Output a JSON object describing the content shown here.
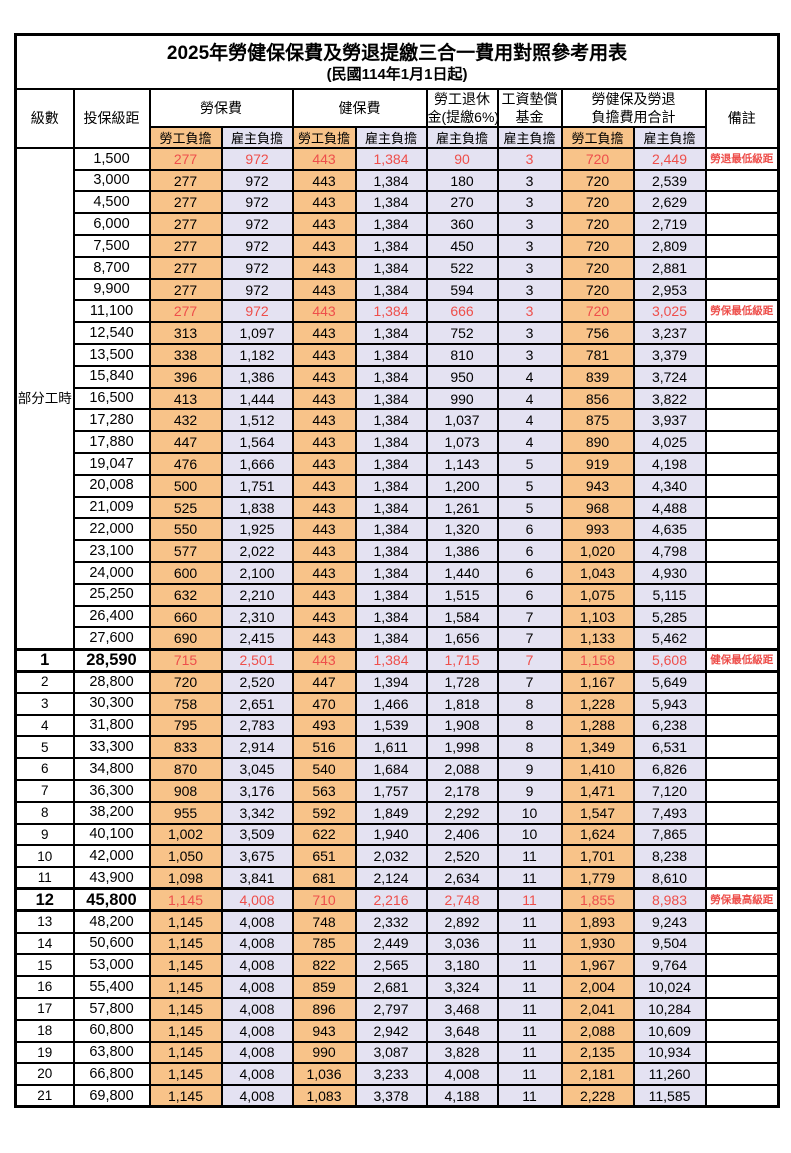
{
  "title": "2025年勞健保保費及勞退提繳三合一費用對照參考用表",
  "subtitle": "(民國114年1月1日起)",
  "colors": {
    "employee_bg": "#f8c389",
    "employer_bg": "#e4e2f2",
    "highlight_red": "#ee4f4b"
  },
  "columns": {
    "level": "級數",
    "bracket": "投保級距",
    "labor_ins": "勞保費",
    "health_ins": "健保費",
    "pension_line1": "勞工退休",
    "pension_line2": "金(提繳6%)",
    "fund_line1": "工資墊償",
    "fund_line2": "基金",
    "total_line1": "勞健保及勞退",
    "total_line2": "負擔費用合計",
    "note": "備註",
    "employee": "勞工負擔",
    "employer": "雇主負擔"
  },
  "part_time": {
    "label": "部分工時",
    "rowspan": 23
  },
  "rows": [
    {
      "bracket": "1,500",
      "v": [
        "277",
        "972",
        "443",
        "1,384",
        "90",
        "3",
        "720",
        "2,449"
      ],
      "note": "勞退最低級距",
      "red": true
    },
    {
      "bracket": "3,000",
      "v": [
        "277",
        "972",
        "443",
        "1,384",
        "180",
        "3",
        "720",
        "2,539"
      ]
    },
    {
      "bracket": "4,500",
      "v": [
        "277",
        "972",
        "443",
        "1,384",
        "270",
        "3",
        "720",
        "2,629"
      ]
    },
    {
      "bracket": "6,000",
      "v": [
        "277",
        "972",
        "443",
        "1,384",
        "360",
        "3",
        "720",
        "2,719"
      ]
    },
    {
      "bracket": "7,500",
      "v": [
        "277",
        "972",
        "443",
        "1,384",
        "450",
        "3",
        "720",
        "2,809"
      ]
    },
    {
      "bracket": "8,700",
      "v": [
        "277",
        "972",
        "443",
        "1,384",
        "522",
        "3",
        "720",
        "2,881"
      ]
    },
    {
      "bracket": "9,900",
      "v": [
        "277",
        "972",
        "443",
        "1,384",
        "594",
        "3",
        "720",
        "2,953"
      ]
    },
    {
      "bracket": "11,100",
      "v": [
        "277",
        "972",
        "443",
        "1,384",
        "666",
        "3",
        "720",
        "3,025"
      ],
      "note": "勞保最低級距",
      "red": true
    },
    {
      "bracket": "12,540",
      "v": [
        "313",
        "1,097",
        "443",
        "1,384",
        "752",
        "3",
        "756",
        "3,237"
      ]
    },
    {
      "bracket": "13,500",
      "v": [
        "338",
        "1,182",
        "443",
        "1,384",
        "810",
        "3",
        "781",
        "3,379"
      ]
    },
    {
      "bracket": "15,840",
      "v": [
        "396",
        "1,386",
        "443",
        "1,384",
        "950",
        "4",
        "839",
        "3,724"
      ]
    },
    {
      "bracket": "16,500",
      "v": [
        "413",
        "1,444",
        "443",
        "1,384",
        "990",
        "4",
        "856",
        "3,822"
      ]
    },
    {
      "bracket": "17,280",
      "v": [
        "432",
        "1,512",
        "443",
        "1,384",
        "1,037",
        "4",
        "875",
        "3,937"
      ]
    },
    {
      "bracket": "17,880",
      "v": [
        "447",
        "1,564",
        "443",
        "1,384",
        "1,073",
        "4",
        "890",
        "4,025"
      ]
    },
    {
      "bracket": "19,047",
      "v": [
        "476",
        "1,666",
        "443",
        "1,384",
        "1,143",
        "5",
        "919",
        "4,198"
      ]
    },
    {
      "bracket": "20,008",
      "v": [
        "500",
        "1,751",
        "443",
        "1,384",
        "1,200",
        "5",
        "943",
        "4,340"
      ]
    },
    {
      "bracket": "21,009",
      "v": [
        "525",
        "1,838",
        "443",
        "1,384",
        "1,261",
        "5",
        "968",
        "4,488"
      ]
    },
    {
      "bracket": "22,000",
      "v": [
        "550",
        "1,925",
        "443",
        "1,384",
        "1,320",
        "6",
        "993",
        "4,635"
      ]
    },
    {
      "bracket": "23,100",
      "v": [
        "577",
        "2,022",
        "443",
        "1,384",
        "1,386",
        "6",
        "1,020",
        "4,798"
      ]
    },
    {
      "bracket": "24,000",
      "v": [
        "600",
        "2,100",
        "443",
        "1,384",
        "1,440",
        "6",
        "1,043",
        "4,930"
      ]
    },
    {
      "bracket": "25,250",
      "v": [
        "632",
        "2,210",
        "443",
        "1,384",
        "1,515",
        "6",
        "1,075",
        "5,115"
      ]
    },
    {
      "bracket": "26,400",
      "v": [
        "660",
        "2,310",
        "443",
        "1,384",
        "1,584",
        "7",
        "1,103",
        "5,285"
      ]
    },
    {
      "bracket": "27,600",
      "v": [
        "690",
        "2,415",
        "443",
        "1,384",
        "1,656",
        "7",
        "1,133",
        "5,462"
      ]
    },
    {
      "level": "1",
      "bracket": "28,590",
      "v": [
        "715",
        "2,501",
        "443",
        "1,384",
        "1,715",
        "7",
        "1,158",
        "5,608"
      ],
      "note": "健保最低級距",
      "red": true,
      "big": true
    },
    {
      "level": "2",
      "bracket": "28,800",
      "v": [
        "720",
        "2,520",
        "447",
        "1,394",
        "1,728",
        "7",
        "1,167",
        "5,649"
      ]
    },
    {
      "level": "3",
      "bracket": "30,300",
      "v": [
        "758",
        "2,651",
        "470",
        "1,466",
        "1,818",
        "8",
        "1,228",
        "5,943"
      ]
    },
    {
      "level": "4",
      "bracket": "31,800",
      "v": [
        "795",
        "2,783",
        "493",
        "1,539",
        "1,908",
        "8",
        "1,288",
        "6,238"
      ]
    },
    {
      "level": "5",
      "bracket": "33,300",
      "v": [
        "833",
        "2,914",
        "516",
        "1,611",
        "1,998",
        "8",
        "1,349",
        "6,531"
      ]
    },
    {
      "level": "6",
      "bracket": "34,800",
      "v": [
        "870",
        "3,045",
        "540",
        "1,684",
        "2,088",
        "9",
        "1,410",
        "6,826"
      ]
    },
    {
      "level": "7",
      "bracket": "36,300",
      "v": [
        "908",
        "3,176",
        "563",
        "1,757",
        "2,178",
        "9",
        "1,471",
        "7,120"
      ]
    },
    {
      "level": "8",
      "bracket": "38,200",
      "v": [
        "955",
        "3,342",
        "592",
        "1,849",
        "2,292",
        "10",
        "1,547",
        "7,493"
      ]
    },
    {
      "level": "9",
      "bracket": "40,100",
      "v": [
        "1,002",
        "3,509",
        "622",
        "1,940",
        "2,406",
        "10",
        "1,624",
        "7,865"
      ]
    },
    {
      "level": "10",
      "bracket": "42,000",
      "v": [
        "1,050",
        "3,675",
        "651",
        "2,032",
        "2,520",
        "11",
        "1,701",
        "8,238"
      ]
    },
    {
      "level": "11",
      "bracket": "43,900",
      "v": [
        "1,098",
        "3,841",
        "681",
        "2,124",
        "2,634",
        "11",
        "1,779",
        "8,610"
      ]
    },
    {
      "level": "12",
      "bracket": "45,800",
      "v": [
        "1,145",
        "4,008",
        "710",
        "2,216",
        "2,748",
        "11",
        "1,855",
        "8,983"
      ],
      "note": "勞保最高級距",
      "red": true,
      "big": true
    },
    {
      "level": "13",
      "bracket": "48,200",
      "v": [
        "1,145",
        "4,008",
        "748",
        "2,332",
        "2,892",
        "11",
        "1,893",
        "9,243"
      ]
    },
    {
      "level": "14",
      "bracket": "50,600",
      "v": [
        "1,145",
        "4,008",
        "785",
        "2,449",
        "3,036",
        "11",
        "1,930",
        "9,504"
      ]
    },
    {
      "level": "15",
      "bracket": "53,000",
      "v": [
        "1,145",
        "4,008",
        "822",
        "2,565",
        "3,180",
        "11",
        "1,967",
        "9,764"
      ]
    },
    {
      "level": "16",
      "bracket": "55,400",
      "v": [
        "1,145",
        "4,008",
        "859",
        "2,681",
        "3,324",
        "11",
        "2,004",
        "10,024"
      ]
    },
    {
      "level": "17",
      "bracket": "57,800",
      "v": [
        "1,145",
        "4,008",
        "896",
        "2,797",
        "3,468",
        "11",
        "2,041",
        "10,284"
      ]
    },
    {
      "level": "18",
      "bracket": "60,800",
      "v": [
        "1,145",
        "4,008",
        "943",
        "2,942",
        "3,648",
        "11",
        "2,088",
        "10,609"
      ]
    },
    {
      "level": "19",
      "bracket": "63,800",
      "v": [
        "1,145",
        "4,008",
        "990",
        "3,087",
        "3,828",
        "11",
        "2,135",
        "10,934"
      ]
    },
    {
      "level": "20",
      "bracket": "66,800",
      "v": [
        "1,145",
        "4,008",
        "1,036",
        "3,233",
        "4,008",
        "11",
        "2,181",
        "11,260"
      ]
    },
    {
      "level": "21",
      "bracket": "69,800",
      "v": [
        "1,145",
        "4,008",
        "1,083",
        "3,378",
        "4,188",
        "11",
        "2,228",
        "11,585"
      ]
    }
  ]
}
